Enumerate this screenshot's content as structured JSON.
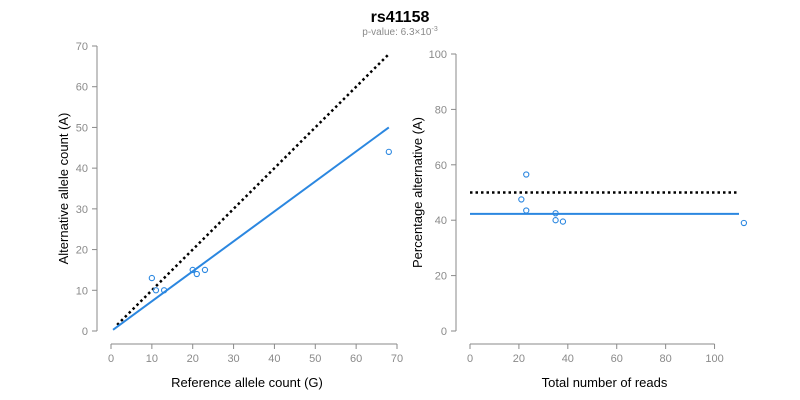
{
  "title": "rs41158",
  "subtitle": {
    "prefix": "p-value: 6.3×10",
    "exponent": "-3"
  },
  "colors": {
    "series": "#2b87e0",
    "reference": "#000000",
    "axis": "#8a8a8a"
  },
  "chart_data": [
    {
      "type": "scatter",
      "xlabel": "Reference allele count (G)",
      "ylabel": "Alternative allele count (A)",
      "xlim": [
        0,
        70
      ],
      "ylim": [
        0,
        70
      ],
      "xticks": [
        0,
        10,
        20,
        30,
        40,
        50,
        60,
        70
      ],
      "yticks": [
        0,
        10,
        20,
        30,
        40,
        50,
        60,
        70
      ],
      "grid": false,
      "points": [
        {
          "x": 10,
          "y": 13
        },
        {
          "x": 11,
          "y": 10
        },
        {
          "x": 13,
          "y": 10
        },
        {
          "x": 20,
          "y": 15
        },
        {
          "x": 21,
          "y": 14
        },
        {
          "x": 23,
          "y": 15
        },
        {
          "x": 68,
          "y": 44
        }
      ],
      "lines": [
        {
          "style": "dotted",
          "color": "#000000",
          "x": [
            1.5,
            68
          ],
          "y": [
            1.5,
            68
          ]
        },
        {
          "style": "solid",
          "color": "#2b87e0",
          "x": [
            0.5,
            68
          ],
          "y": [
            0.3,
            50
          ]
        }
      ]
    },
    {
      "type": "scatter",
      "xlabel": "Total number of reads",
      "ylabel": "Percentage alternative (A)",
      "xlim": [
        0,
        110
      ],
      "ylim": [
        0,
        100
      ],
      "xticks": [
        0,
        20,
        40,
        60,
        80,
        100
      ],
      "yticks": [
        0,
        20,
        40,
        60,
        80,
        100
      ],
      "grid": false,
      "points": [
        {
          "x": 21,
          "y": 47.5
        },
        {
          "x": 23,
          "y": 56.5
        },
        {
          "x": 23,
          "y": 43.5
        },
        {
          "x": 35,
          "y": 42.5
        },
        {
          "x": 35,
          "y": 40
        },
        {
          "x": 38,
          "y": 39.5
        },
        {
          "x": 112,
          "y": 39
        }
      ],
      "lines": [
        {
          "style": "dotted",
          "color": "#000000",
          "x": [
            0,
            110
          ],
          "y": [
            50,
            50
          ]
        },
        {
          "style": "solid",
          "color": "#2b87e0",
          "x": [
            0,
            110
          ],
          "y": [
            42.3,
            42.3
          ]
        }
      ]
    }
  ]
}
